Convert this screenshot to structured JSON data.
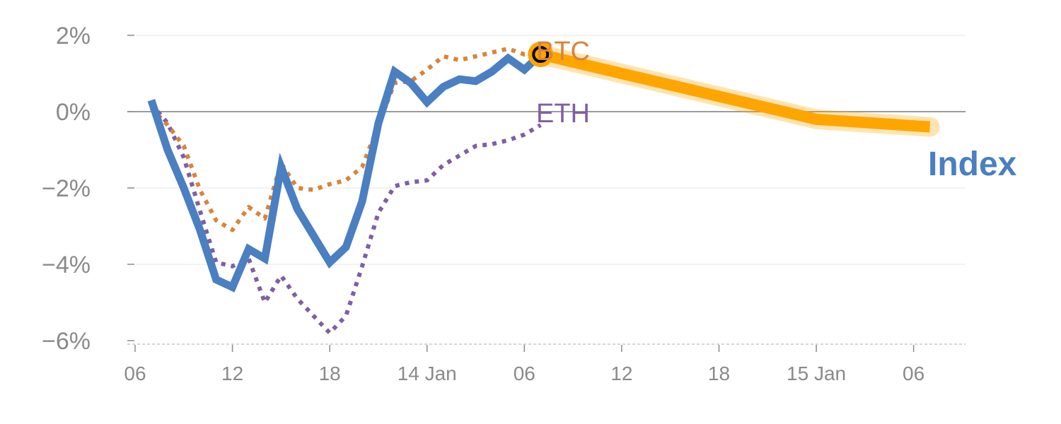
{
  "chart_data": {
    "type": "line",
    "y_unit": "%",
    "ylim": [
      -6,
      2
    ],
    "y_ticks": [
      {
        "value": 2,
        "label": "2%"
      },
      {
        "value": 0,
        "label": "0%"
      },
      {
        "value": -2,
        "label": "−2%"
      },
      {
        "value": -4,
        "label": "−4%"
      },
      {
        "value": -6,
        "label": "−6%"
      }
    ],
    "x_ticks": [
      {
        "hour": 0,
        "label": "06"
      },
      {
        "hour": 6,
        "label": "12"
      },
      {
        "hour": 12,
        "label": "18"
      },
      {
        "hour": 18,
        "label": "14 Jan"
      },
      {
        "hour": 24,
        "label": "06"
      },
      {
        "hour": 30,
        "label": "12"
      },
      {
        "hour": 36,
        "label": "18"
      },
      {
        "hour": 42,
        "label": "15 Jan"
      },
      {
        "hour": 48,
        "label": "06"
      }
    ],
    "grid": true,
    "legend": "direct labels at line ends",
    "series": [
      {
        "name": "Index",
        "color": "#4a7fc1",
        "style": "solid",
        "points": [
          [
            1,
            0.3
          ],
          [
            2,
            -1
          ],
          [
            3,
            -2
          ],
          [
            4,
            -3.1
          ],
          [
            5,
            -4.4
          ],
          [
            6,
            -4.6
          ],
          [
            7,
            -3.6
          ],
          [
            8,
            -3.85
          ],
          [
            9,
            -1.45
          ],
          [
            10,
            -2.55
          ],
          [
            11,
            -3.25
          ],
          [
            12,
            -3.95
          ],
          [
            13,
            -3.55
          ],
          [
            14,
            -2.35
          ],
          [
            15,
            -0.3
          ],
          [
            16,
            1.05
          ],
          [
            17,
            0.75
          ],
          [
            18,
            0.25
          ],
          [
            19,
            0.65
          ],
          [
            20,
            0.85
          ],
          [
            21,
            0.8
          ],
          [
            22,
            1.05
          ],
          [
            23,
            1.4
          ],
          [
            24,
            1.1
          ],
          [
            25,
            1.5
          ]
        ]
      },
      {
        "name": "BTC",
        "color": "#d8843a",
        "style": "dotted",
        "points": [
          [
            1,
            0.1
          ],
          [
            2,
            -0.35
          ],
          [
            3,
            -0.9
          ],
          [
            4,
            -2.05
          ],
          [
            5,
            -2.85
          ],
          [
            6,
            -3.1
          ],
          [
            7,
            -2.5
          ],
          [
            8,
            -2.8
          ],
          [
            9,
            -1.35
          ],
          [
            10,
            -2.0
          ],
          [
            11,
            -2.05
          ],
          [
            12,
            -1.9
          ],
          [
            13,
            -1.8
          ],
          [
            14,
            -1.45
          ],
          [
            15,
            -0.35
          ],
          [
            16,
            0.75
          ],
          [
            17,
            0.8
          ],
          [
            18,
            1.1
          ],
          [
            19,
            1.45
          ],
          [
            20,
            1.35
          ],
          [
            21,
            1.45
          ],
          [
            22,
            1.55
          ],
          [
            23,
            1.65
          ],
          [
            24,
            1.5
          ],
          [
            25,
            1.5
          ]
        ]
      },
      {
        "name": "ETH",
        "color": "#7e5fa3",
        "style": "dotted",
        "points": [
          [
            1,
            0.2
          ],
          [
            2,
            -0.3
          ],
          [
            3,
            -1.2
          ],
          [
            4,
            -2.6
          ],
          [
            5,
            -3.95
          ],
          [
            6,
            -4.05
          ],
          [
            7,
            -3.85
          ],
          [
            8,
            -5.0
          ],
          [
            9,
            -4.3
          ],
          [
            10,
            -4.9
          ],
          [
            11,
            -5.35
          ],
          [
            12,
            -5.8
          ],
          [
            13,
            -5.35
          ],
          [
            14,
            -4.05
          ],
          [
            15,
            -2.65
          ],
          [
            16,
            -1.95
          ],
          [
            17,
            -1.85
          ],
          [
            18,
            -1.8
          ],
          [
            19,
            -1.4
          ],
          [
            20,
            -1.15
          ],
          [
            21,
            -0.9
          ],
          [
            22,
            -0.85
          ],
          [
            23,
            -0.75
          ],
          [
            24,
            -0.6
          ],
          [
            25,
            -0.35
          ]
        ]
      },
      {
        "name": "Index",
        "role": "forecast",
        "color": "#ffa500",
        "style": "band",
        "points": [
          [
            25,
            1.5
          ],
          [
            42,
            -0.2
          ],
          [
            49,
            -0.4
          ]
        ]
      }
    ],
    "marker": {
      "hour": 25,
      "value": 1.5,
      "fill": "#ffa500",
      "ring": "#000000"
    }
  }
}
